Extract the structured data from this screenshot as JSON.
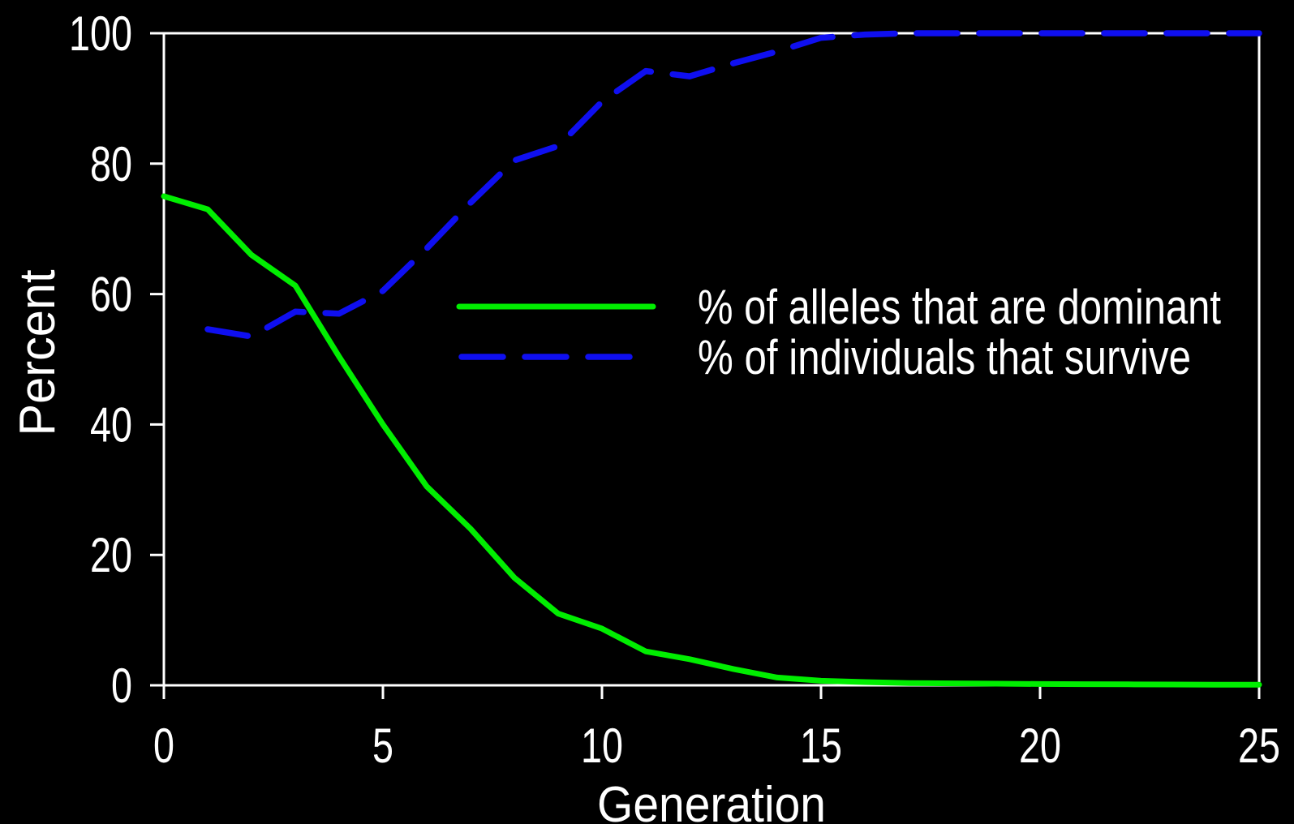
{
  "chart_data": {
    "type": "line",
    "title": "",
    "xlabel": "Generation",
    "ylabel": "Percent",
    "xlim": [
      0,
      25
    ],
    "ylim": [
      0,
      100
    ],
    "x_ticks": [
      0,
      5,
      10,
      15,
      20,
      25
    ],
    "y_ticks": [
      0,
      20,
      40,
      60,
      80,
      100
    ],
    "grid": false,
    "background_color": "#000000",
    "axis_color": "#ffffff",
    "text_color": "#ffffff",
    "legend_position": "center-right-inside",
    "series": [
      {
        "name": "% of alleles that are dominant",
        "color": "#00ee00",
        "style": "solid",
        "points": [
          [
            0,
            75
          ],
          [
            1,
            73
          ],
          [
            2,
            66
          ],
          [
            3,
            61.3
          ],
          [
            4,
            50.4
          ],
          [
            5,
            40
          ],
          [
            6,
            30.5
          ],
          [
            7,
            24
          ],
          [
            8,
            16.5
          ],
          [
            9,
            11
          ],
          [
            10,
            8.7
          ],
          [
            11,
            5.2
          ],
          [
            12,
            4.0
          ],
          [
            13,
            2.5
          ],
          [
            14,
            1.2
          ],
          [
            15,
            0.7
          ],
          [
            16,
            0.5
          ],
          [
            17,
            0.35
          ],
          [
            18,
            0.3
          ],
          [
            19,
            0.25
          ],
          [
            20,
            0.2
          ],
          [
            21,
            0.18
          ],
          [
            22,
            0.15
          ],
          [
            23,
            0.12
          ],
          [
            24,
            0.1
          ],
          [
            25,
            0.1
          ]
        ]
      },
      {
        "name": "% of individuals that survive",
        "color": "#0f0ff0",
        "style": "dashed",
        "points": [
          [
            1,
            54.6
          ],
          [
            2,
            53.5
          ],
          [
            3,
            57.3
          ],
          [
            4,
            57.0
          ],
          [
            5,
            60.5
          ],
          [
            6,
            67
          ],
          [
            7,
            74
          ],
          [
            8,
            80.5
          ],
          [
            9,
            82.7
          ],
          [
            10,
            89.5
          ],
          [
            11,
            94.2
          ],
          [
            12,
            93.4
          ],
          [
            13,
            95.4
          ],
          [
            14,
            97.2
          ],
          [
            15,
            99.3
          ],
          [
            16,
            99.8
          ],
          [
            17,
            100
          ],
          [
            18,
            100
          ],
          [
            19,
            100
          ],
          [
            20,
            100
          ],
          [
            21,
            100
          ],
          [
            22,
            100
          ],
          [
            23,
            100
          ],
          [
            24,
            100
          ],
          [
            25,
            100
          ]
        ]
      }
    ]
  }
}
